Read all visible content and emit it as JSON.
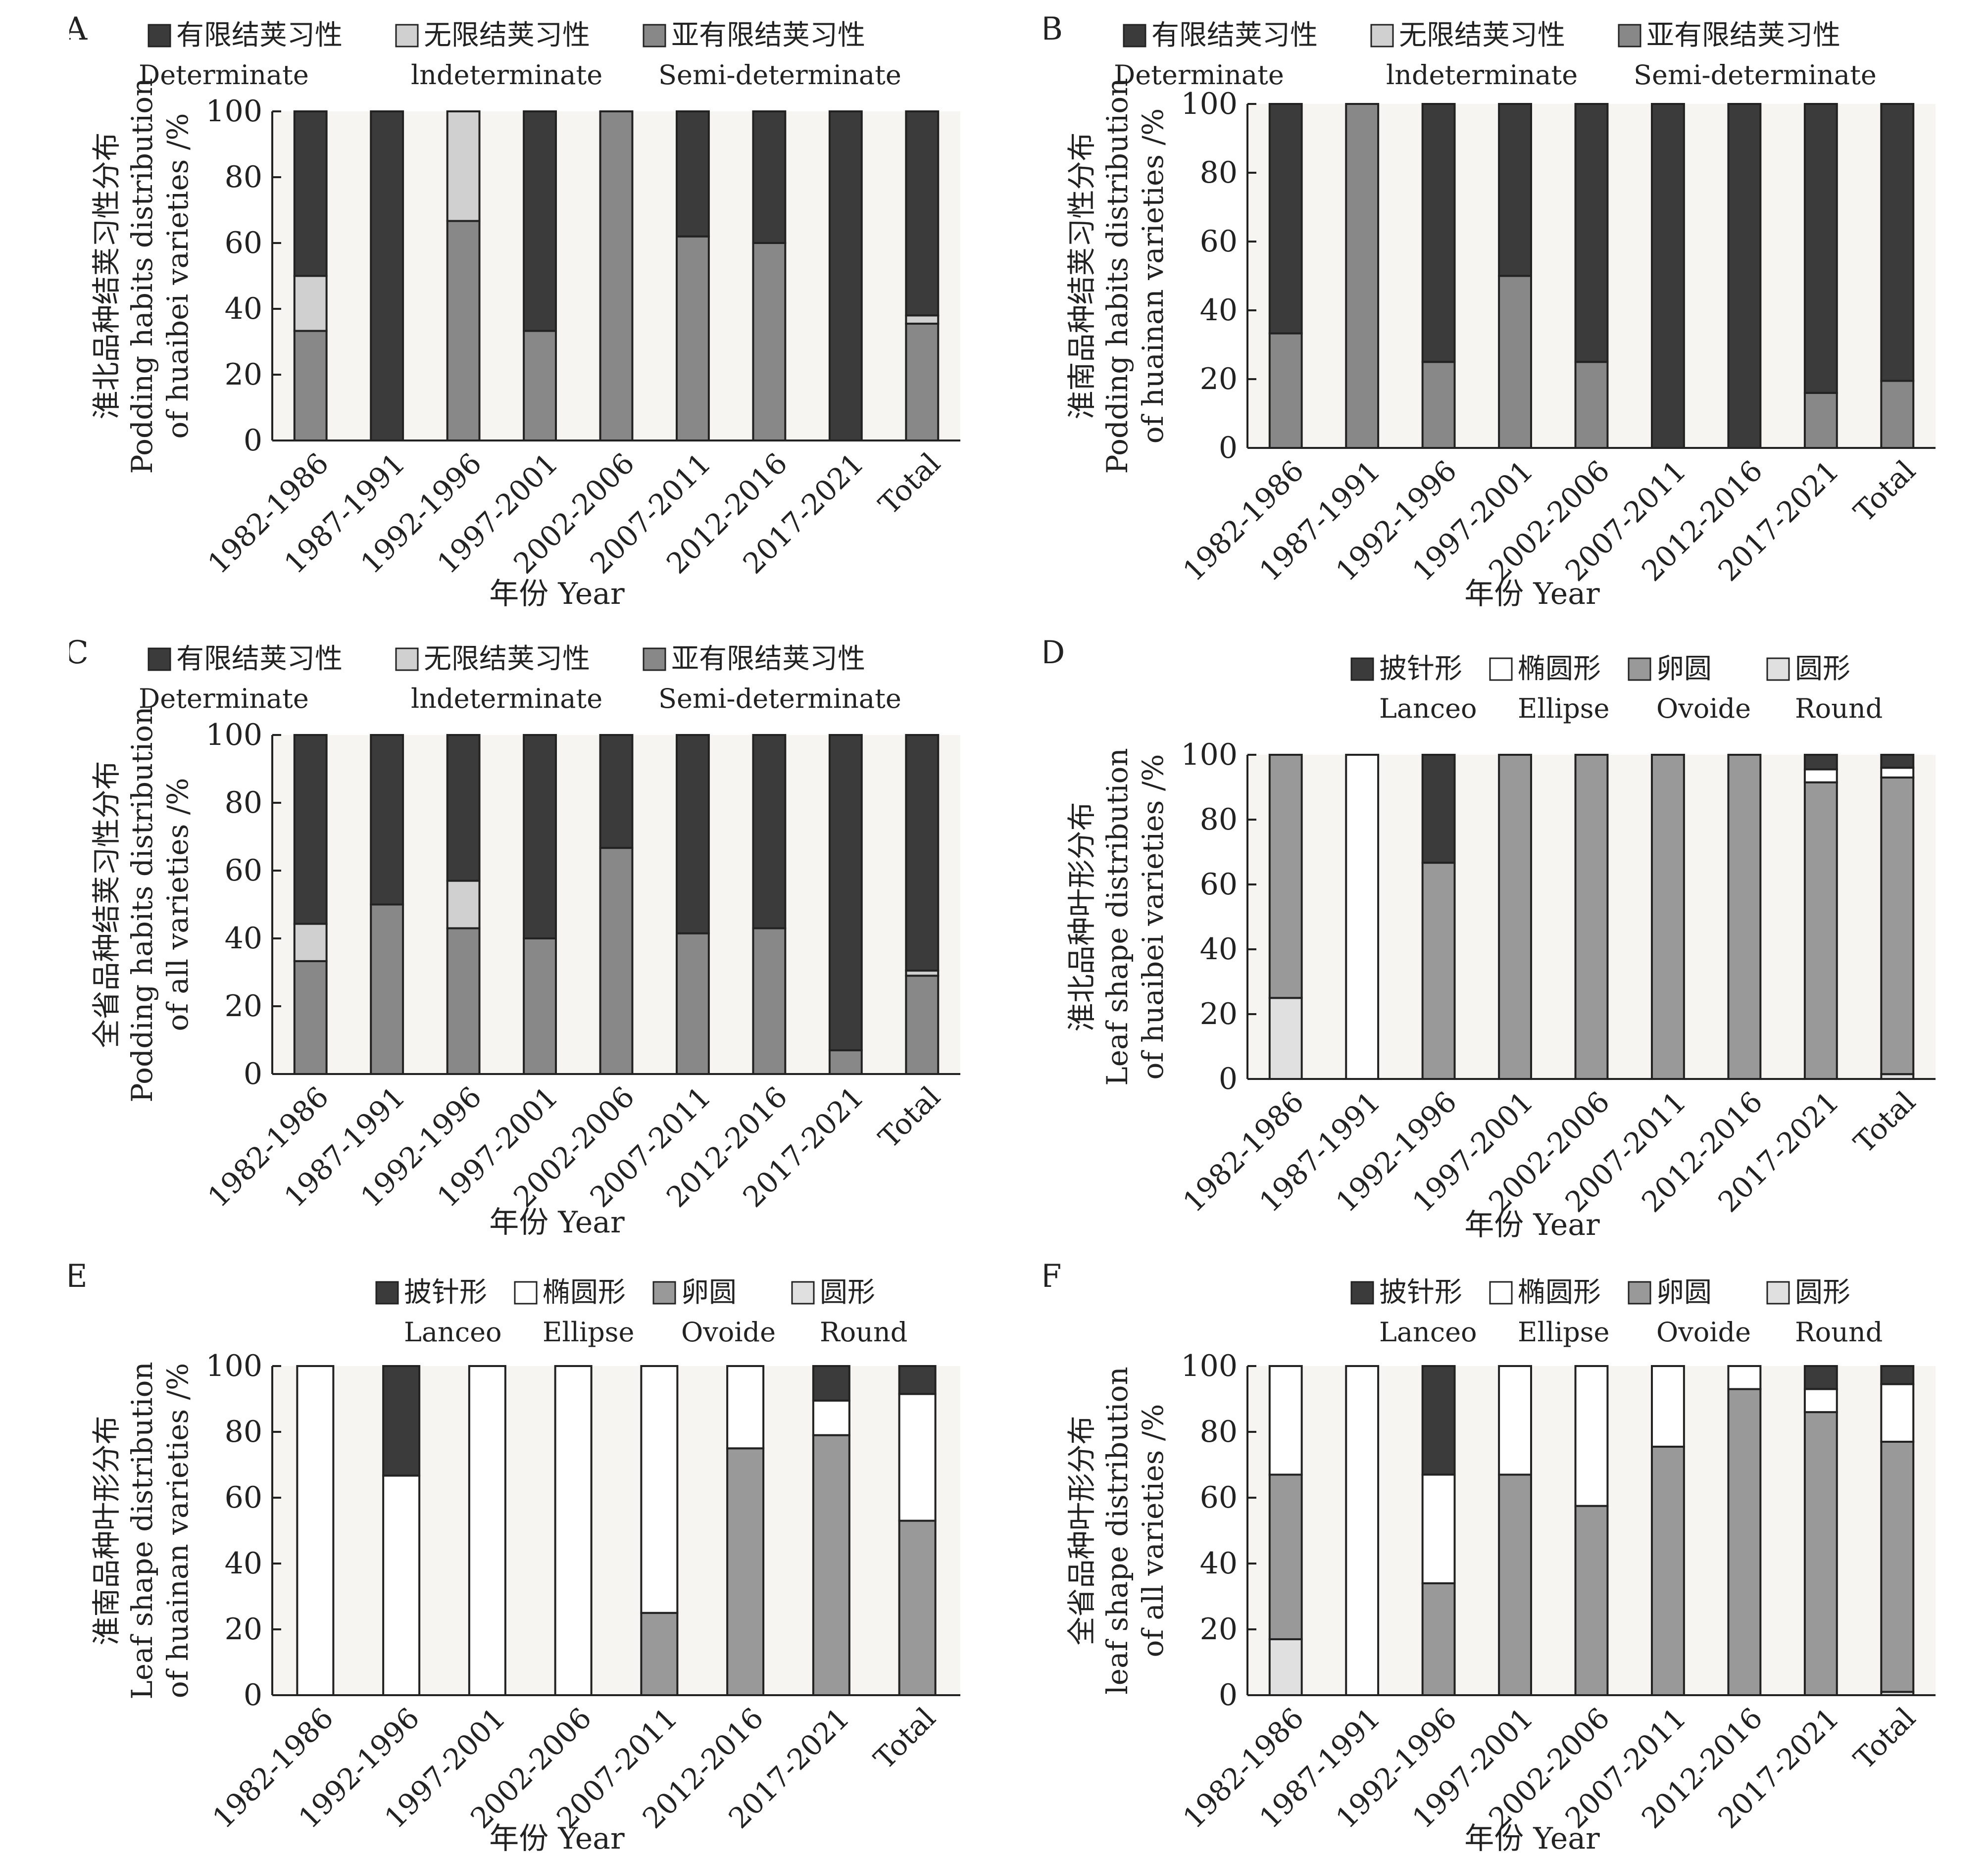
{
  "colors": {
    "determinate": "#3b3b3b",
    "indeterminate": "#d0d0d0",
    "semi_determinate": "#888888",
    "lanceo": "#3b3b3b",
    "ellipse": "#ffffff",
    "ovoide": "#999999",
    "round": "#e0e0e0",
    "plot_background": "#f7f5f2"
  },
  "x_axis_label": "年份 Year",
  "chart_data": [
    {
      "panel": "A",
      "type": "bar",
      "stacked": true,
      "ylabel_lines": [
        "淮北品种结荚习性分布",
        "Podding habits distribution",
        "of huaibei varieties /%"
      ],
      "ylim": [
        0,
        100
      ],
      "yticks": [
        0,
        20,
        40,
        60,
        80,
        100
      ],
      "legend": [
        {
          "key": "determinate",
          "cn": "有限结荚习性",
          "en": "Determinate"
        },
        {
          "key": "indeterminate",
          "cn": "无限结荚习性",
          "en": "lndeterminate"
        },
        {
          "key": "semi_determinate",
          "cn": "亚有限结荚习性",
          "en": "Semi-determinate"
        }
      ],
      "categories": [
        "1982-1986",
        "1987-1991",
        "1992-1996",
        "1997-2001",
        "2002-2006",
        "2007-2011",
        "2012-2016",
        "2017-2021",
        "Total"
      ],
      "stack_order": [
        "semi_determinate",
        "indeterminate",
        "determinate"
      ],
      "series": [
        {
          "key": "semi_determinate",
          "values": [
            33.3,
            0,
            66.7,
            33.3,
            100,
            62,
            60,
            0,
            35.5
          ]
        },
        {
          "key": "indeterminate",
          "values": [
            16.7,
            0,
            33.3,
            0,
            0,
            0,
            0,
            0,
            2.5
          ]
        },
        {
          "key": "determinate",
          "values": [
            50,
            100,
            0,
            66.7,
            0,
            38,
            40,
            100,
            62
          ]
        }
      ]
    },
    {
      "panel": "B",
      "type": "bar",
      "stacked": true,
      "ylabel_lines": [
        "淮南品种结荚习性分布",
        "Podding habits distribution",
        "of huainan varieties /%"
      ],
      "ylim": [
        0,
        100
      ],
      "yticks": [
        0,
        20,
        40,
        60,
        80,
        100
      ],
      "legend": [
        {
          "key": "determinate",
          "cn": "有限结荚习性",
          "en": "Determinate"
        },
        {
          "key": "indeterminate",
          "cn": "无限结荚习性",
          "en": "lndeterminate"
        },
        {
          "key": "semi_determinate",
          "cn": "亚有限结荚习性",
          "en": "Semi-determinate"
        }
      ],
      "categories": [
        "1982-1986",
        "1987-1991",
        "1992-1996",
        "1997-2001",
        "2002-2006",
        "2007-2011",
        "2012-2016",
        "2017-2021",
        "Total"
      ],
      "stack_order": [
        "semi_determinate",
        "indeterminate",
        "determinate"
      ],
      "series": [
        {
          "key": "semi_determinate",
          "values": [
            33.3,
            100,
            25,
            50,
            25,
            0,
            0,
            16,
            19.5
          ]
        },
        {
          "key": "indeterminate",
          "values": [
            0,
            0,
            0,
            0,
            0,
            0,
            0,
            0,
            0
          ]
        },
        {
          "key": "determinate",
          "values": [
            66.7,
            0,
            75,
            50,
            75,
            100,
            100,
            84,
            80.5
          ]
        }
      ]
    },
    {
      "panel": "C",
      "type": "bar",
      "stacked": true,
      "ylabel_lines": [
        "全省品种结荚习性分布",
        "Podding habits distribution",
        "of all varieties /%"
      ],
      "ylim": [
        0,
        100
      ],
      "yticks": [
        0,
        20,
        40,
        60,
        80,
        100
      ],
      "legend": [
        {
          "key": "determinate",
          "cn": "有限结荚习性",
          "en": "Determinate"
        },
        {
          "key": "indeterminate",
          "cn": "无限结荚习性",
          "en": "lndeterminate"
        },
        {
          "key": "semi_determinate",
          "cn": "亚有限结荚习性",
          "en": "Semi-determinate"
        }
      ],
      "categories": [
        "1982-1986",
        "1987-1991",
        "1992-1996",
        "1997-2001",
        "2002-2006",
        "2007-2011",
        "2012-2016",
        "2017-2021",
        "Total"
      ],
      "stack_order": [
        "semi_determinate",
        "indeterminate",
        "determinate"
      ],
      "series": [
        {
          "key": "semi_determinate",
          "values": [
            33.3,
            50,
            43,
            40,
            66.7,
            41.5,
            43,
            7,
            29
          ]
        },
        {
          "key": "indeterminate",
          "values": [
            11,
            0,
            14,
            0,
            0,
            0,
            0,
            0,
            1.5
          ]
        },
        {
          "key": "determinate",
          "values": [
            55.7,
            50,
            43,
            60,
            33.3,
            58.5,
            57,
            93,
            69.5
          ]
        }
      ]
    },
    {
      "panel": "D",
      "type": "bar",
      "stacked": true,
      "ylabel_lines": [
        "淮北品种叶形分布",
        "Leaf shape distribution",
        "of huaibei varieties /%"
      ],
      "ylim": [
        0,
        100
      ],
      "yticks": [
        0,
        20,
        40,
        60,
        80,
        100
      ],
      "legend": [
        {
          "key": "lanceo",
          "cn": "披针形",
          "en": "Lanceo"
        },
        {
          "key": "ellipse",
          "cn": "椭圆形",
          "en": "Ellipse"
        },
        {
          "key": "ovoide",
          "cn": "卵圆",
          "en": "Ovoide"
        },
        {
          "key": "round",
          "cn": "圆形",
          "en": "Round"
        }
      ],
      "categories": [
        "1982-1986",
        "1987-1991",
        "1992-1996",
        "1997-2001",
        "2002-2006",
        "2007-2011",
        "2012-2016",
        "2017-2021",
        "Total"
      ],
      "stack_order": [
        "round",
        "ovoide",
        "ellipse",
        "lanceo"
      ],
      "series": [
        {
          "key": "round",
          "values": [
            25,
            0,
            0,
            0,
            0,
            0,
            0,
            0,
            1.5
          ]
        },
        {
          "key": "ovoide",
          "values": [
            75,
            0,
            66.7,
            100,
            100,
            100,
            100,
            91.5,
            91.5
          ]
        },
        {
          "key": "ellipse",
          "values": [
            0,
            100,
            0,
            0,
            0,
            0,
            0,
            4,
            3
          ]
        },
        {
          "key": "lanceo",
          "values": [
            0,
            0,
            33.3,
            0,
            0,
            0,
            0,
            4.5,
            4
          ]
        }
      ]
    },
    {
      "panel": "E",
      "type": "bar",
      "stacked": true,
      "ylabel_lines": [
        "淮南品种叶形分布",
        "Leaf shape distribution",
        "of huainan varieties /%"
      ],
      "ylim": [
        0,
        100
      ],
      "yticks": [
        0,
        20,
        40,
        60,
        80,
        100
      ],
      "legend": [
        {
          "key": "lanceo",
          "cn": "披针形",
          "en": "Lanceo"
        },
        {
          "key": "ellipse",
          "cn": "椭圆形",
          "en": "Ellipse"
        },
        {
          "key": "ovoide",
          "cn": "卵圆",
          "en": "Ovoide"
        },
        {
          "key": "round",
          "cn": "圆形",
          "en": "Round"
        }
      ],
      "categories": [
        "1982-1986",
        "1992-1996",
        "1997-2001",
        "2002-2006",
        "2007-2011",
        "2012-2016",
        "2017-2021",
        "Total"
      ],
      "stack_order": [
        "round",
        "ovoide",
        "ellipse",
        "lanceo"
      ],
      "series": [
        {
          "key": "round",
          "values": [
            0,
            0,
            0,
            0,
            0,
            0,
            0,
            0
          ]
        },
        {
          "key": "ovoide",
          "values": [
            0,
            0,
            0,
            0,
            25,
            75,
            79,
            53
          ]
        },
        {
          "key": "ellipse",
          "values": [
            100,
            66.7,
            100,
            100,
            75,
            25,
            10.5,
            38.5
          ]
        },
        {
          "key": "lanceo",
          "values": [
            0,
            33.3,
            0,
            0,
            0,
            0,
            10.5,
            8.5
          ]
        }
      ]
    },
    {
      "panel": "F",
      "type": "bar",
      "stacked": true,
      "ylabel_lines": [
        "全省品种叶形分布",
        "leaf shape distribution",
        "of all varieties /%"
      ],
      "ylim": [
        0,
        100
      ],
      "yticks": [
        0,
        20,
        40,
        60,
        80,
        100
      ],
      "legend": [
        {
          "key": "lanceo",
          "cn": "披针形",
          "en": "Lanceo"
        },
        {
          "key": "ellipse",
          "cn": "椭圆形",
          "en": "Ellipse"
        },
        {
          "key": "ovoide",
          "cn": "卵圆",
          "en": "Ovoide"
        },
        {
          "key": "round",
          "cn": "圆形",
          "en": "Round"
        }
      ],
      "categories": [
        "1982-1986",
        "1987-1991",
        "1992-1996",
        "1997-2001",
        "2002-2006",
        "2007-2011",
        "2012-2016",
        "2017-2021",
        "Total"
      ],
      "stack_order": [
        "round",
        "ovoide",
        "ellipse",
        "lanceo"
      ],
      "series": [
        {
          "key": "round",
          "values": [
            17,
            0,
            0,
            0,
            0,
            0,
            0,
            0,
            1
          ]
        },
        {
          "key": "ovoide",
          "values": [
            50,
            0,
            34,
            67,
            57.5,
            75.5,
            93,
            86,
            76
          ]
        },
        {
          "key": "ellipse",
          "values": [
            33,
            100,
            33,
            33,
            42.5,
            24.5,
            7,
            7,
            17.5
          ]
        },
        {
          "key": "lanceo",
          "values": [
            0,
            0,
            33,
            0,
            0,
            0,
            0,
            7,
            5.5
          ]
        }
      ]
    }
  ]
}
